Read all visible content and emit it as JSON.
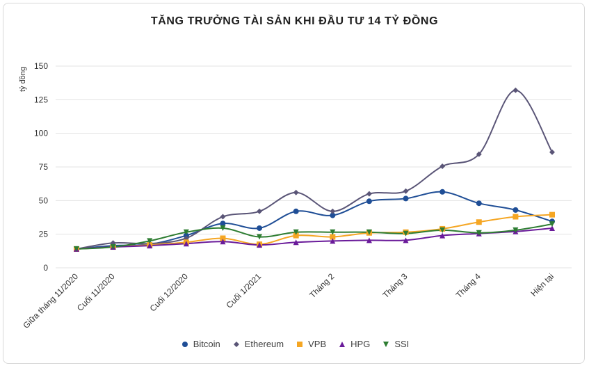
{
  "chart_data": {
    "type": "line",
    "title": "TĂNG TRƯỞNG TÀI SẢN KHI ĐẦU TƯ 14 TỶ ĐỒNG",
    "xlabel": "",
    "ylabel": "tỷ đồng",
    "ylim": [
      0,
      150
    ],
    "yticks": [
      0,
      25,
      50,
      75,
      100,
      125,
      150
    ],
    "grid": true,
    "legend_position": "bottom",
    "categories": [
      "Giữa tháng 11/2020",
      "Cuối 11/2020",
      "",
      "Cuối 12/2020",
      "",
      "Cuối 1/2021",
      "",
      "Tháng 2",
      "",
      "Tháng 3",
      "",
      "Tháng 4",
      "",
      "Hiện tại"
    ],
    "series": [
      {
        "name": "Bitcoin",
        "color": "#1f4e96",
        "marker": "circle",
        "values": [
          14,
          16.5,
          17.5,
          24,
          33,
          29.5,
          42,
          39,
          49.5,
          51.5,
          56.5,
          48,
          43,
          34.5
        ]
      },
      {
        "name": "Ethereum",
        "color": "#5a5577",
        "marker": "diamond",
        "values": [
          14,
          18.5,
          18,
          22,
          38,
          42,
          56,
          42,
          55,
          57,
          75.5,
          84.5,
          132,
          86
        ]
      },
      {
        "name": "VPB",
        "color": "#f5a623",
        "marker": "square",
        "values": [
          14,
          15.5,
          17,
          19,
          22,
          17.5,
          24,
          23,
          26,
          26.5,
          29,
          34,
          38,
          39.5
        ]
      },
      {
        "name": "HPG",
        "color": "#6a1b9a",
        "marker": "triangle-up",
        "values": [
          14,
          15.5,
          16.5,
          18,
          19.5,
          17,
          19,
          20,
          20.5,
          20.5,
          24,
          25.5,
          27,
          29.5
        ]
      },
      {
        "name": "SSI",
        "color": "#2e7d32",
        "marker": "triangle-down",
        "values": [
          14,
          15.5,
          20,
          26.5,
          29.5,
          23,
          26.5,
          26.5,
          26.5,
          25.5,
          28,
          26,
          28,
          32.5
        ]
      }
    ]
  }
}
